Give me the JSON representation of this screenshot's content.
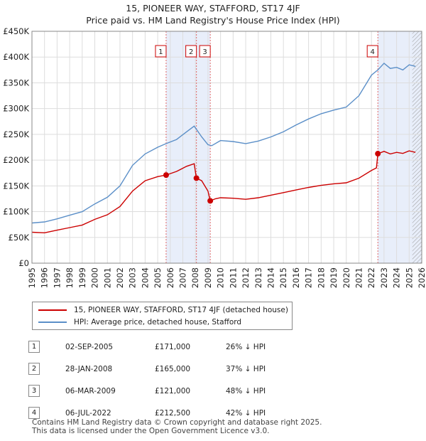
{
  "header": {
    "line1": "15, PIONEER WAY, STAFFORD, ST17 4JF",
    "line2": "Price paid vs. HM Land Registry's House Price Index (HPI)"
  },
  "chart_data": {
    "type": "line",
    "x_range": [
      1995,
      2026
    ],
    "ylim": [
      0,
      450000
    ],
    "y_ticks": [
      0,
      50000,
      100000,
      150000,
      200000,
      250000,
      300000,
      350000,
      400000,
      450000
    ],
    "y_tick_labels": [
      "£0",
      "£50K",
      "£100K",
      "£150K",
      "£200K",
      "£250K",
      "£300K",
      "£350K",
      "£400K",
      "£450K"
    ],
    "x_ticks": [
      1995,
      1996,
      1997,
      1998,
      1999,
      2000,
      2001,
      2002,
      2003,
      2004,
      2005,
      2006,
      2007,
      2008,
      2009,
      2010,
      2011,
      2012,
      2013,
      2014,
      2015,
      2016,
      2017,
      2018,
      2019,
      2020,
      2021,
      2022,
      2023,
      2024,
      2025,
      2026
    ],
    "x_tick_labels": [
      "1995",
      "1996",
      "1997",
      "1998",
      "1999",
      "2000",
      "2001",
      "2002",
      "2003",
      "2004",
      "2005",
      "2006",
      "2007",
      "2008",
      "2009",
      "2010",
      "2011",
      "2012",
      "2013",
      "2014",
      "2015",
      "2016",
      "2017",
      "2018",
      "2019",
      "2020",
      "2021",
      "2022",
      "2023",
      "2024",
      "2025",
      "2026"
    ],
    "grid": true,
    "shaded_spans": [
      [
        2005.67,
        2009.18
      ],
      [
        2022.51,
        2026
      ]
    ],
    "hatched_from": 2025.25,
    "series": [
      {
        "name": "15, PIONEER WAY, STAFFORD, ST17 4JF (detached house)",
        "color": "#cc0000",
        "points": [
          [
            1995.0,
            60000
          ],
          [
            1996.0,
            59000
          ],
          [
            1997.0,
            64000
          ],
          [
            1998.0,
            69000
          ],
          [
            1999.0,
            74000
          ],
          [
            2000.0,
            85000
          ],
          [
            2001.0,
            94000
          ],
          [
            2002.0,
            110000
          ],
          [
            2003.0,
            140000
          ],
          [
            2004.0,
            160000
          ],
          [
            2005.0,
            168000
          ],
          [
            2005.67,
            171000
          ],
          [
            2006.5,
            178000
          ],
          [
            2007.3,
            188000
          ],
          [
            2007.9,
            193000
          ],
          [
            2008.08,
            165000
          ],
          [
            2008.5,
            160000
          ],
          [
            2009.0,
            140000
          ],
          [
            2009.18,
            121000
          ],
          [
            2009.6,
            125000
          ],
          [
            2010.0,
            127000
          ],
          [
            2011.0,
            126000
          ],
          [
            2012.0,
            124000
          ],
          [
            2013.0,
            127000
          ],
          [
            2014.0,
            132000
          ],
          [
            2015.0,
            137000
          ],
          [
            2016.0,
            142000
          ],
          [
            2017.0,
            147000
          ],
          [
            2018.0,
            151000
          ],
          [
            2019.0,
            154000
          ],
          [
            2020.0,
            156000
          ],
          [
            2021.0,
            165000
          ],
          [
            2022.0,
            180000
          ],
          [
            2022.4,
            185000
          ],
          [
            2022.51,
            212500
          ],
          [
            2023.0,
            217000
          ],
          [
            2023.5,
            212000
          ],
          [
            2024.0,
            215000
          ],
          [
            2024.5,
            213000
          ],
          [
            2025.0,
            218000
          ],
          [
            2025.5,
            215000
          ]
        ]
      },
      {
        "name": "HPI: Average price, detached house, Stafford",
        "color": "#5b8fc8",
        "points": [
          [
            1995.0,
            78000
          ],
          [
            1996.0,
            80000
          ],
          [
            1997.0,
            86000
          ],
          [
            1998.0,
            93000
          ],
          [
            1999.0,
            100000
          ],
          [
            2000.0,
            115000
          ],
          [
            2001.0,
            128000
          ],
          [
            2002.0,
            150000
          ],
          [
            2003.0,
            190000
          ],
          [
            2004.0,
            212000
          ],
          [
            2005.0,
            225000
          ],
          [
            2005.67,
            232000
          ],
          [
            2006.5,
            240000
          ],
          [
            2007.3,
            255000
          ],
          [
            2007.9,
            266000
          ],
          [
            2008.5,
            245000
          ],
          [
            2009.0,
            230000
          ],
          [
            2009.3,
            228000
          ],
          [
            2010.0,
            238000
          ],
          [
            2011.0,
            236000
          ],
          [
            2012.0,
            232000
          ],
          [
            2013.0,
            237000
          ],
          [
            2014.0,
            245000
          ],
          [
            2015.0,
            255000
          ],
          [
            2016.0,
            268000
          ],
          [
            2017.0,
            280000
          ],
          [
            2018.0,
            290000
          ],
          [
            2019.0,
            297000
          ],
          [
            2020.0,
            303000
          ],
          [
            2021.0,
            325000
          ],
          [
            2022.0,
            365000
          ],
          [
            2022.51,
            375000
          ],
          [
            2023.0,
            388000
          ],
          [
            2023.5,
            378000
          ],
          [
            2024.0,
            380000
          ],
          [
            2024.5,
            375000
          ],
          [
            2025.0,
            385000
          ],
          [
            2025.5,
            382000
          ]
        ]
      }
    ],
    "markers": [
      {
        "label": "1",
        "x": 2005.67,
        "y": 171000
      },
      {
        "label": "2",
        "x": 2008.08,
        "y": 165000
      },
      {
        "label": "3",
        "x": 2009.18,
        "y": 121000
      },
      {
        "label": "4",
        "x": 2022.51,
        "y": 212500
      }
    ]
  },
  "legend": {
    "items": [
      {
        "label": "15, PIONEER WAY, STAFFORD, ST17 4JF (detached house)",
        "color": "#cc0000"
      },
      {
        "label": "HPI: Average price, detached house, Stafford",
        "color": "#5b8fc8"
      }
    ]
  },
  "sales": [
    {
      "num": "1",
      "date": "02-SEP-2005",
      "price": "£171,000",
      "hpi": "26% ↓ HPI"
    },
    {
      "num": "2",
      "date": "28-JAN-2008",
      "price": "£165,000",
      "hpi": "37% ↓ HPI"
    },
    {
      "num": "3",
      "date": "06-MAR-2009",
      "price": "£121,000",
      "hpi": "48% ↓ HPI"
    },
    {
      "num": "4",
      "date": "06-JUL-2022",
      "price": "£212,500",
      "hpi": "42% ↓ HPI"
    }
  ],
  "footer": {
    "line1": "Contains HM Land Registry data © Crown copyright and database right 2025.",
    "line2": "This data is licensed under the Open Government Licence v3.0."
  }
}
